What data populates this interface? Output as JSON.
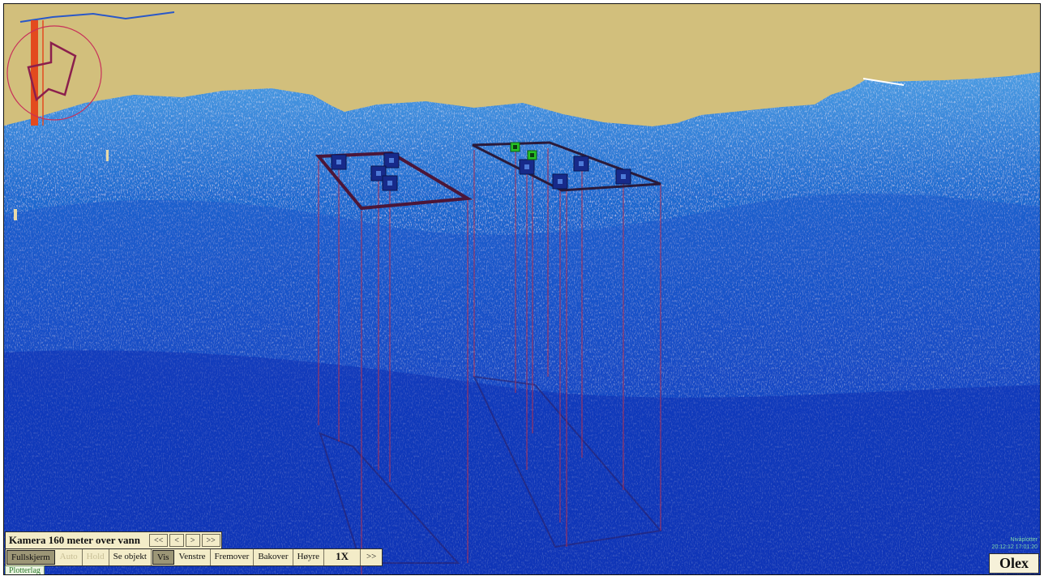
{
  "camera": {
    "status": "Kamera 160 meter over vann",
    "nav_buttons": [
      "<<",
      "<",
      ">",
      ">>"
    ]
  },
  "toolbar": {
    "fullscreen": "Fullskjerm",
    "auto": "Auto",
    "hold": "Hold",
    "show_object": "Se objekt",
    "show": "Vis",
    "left": "Venstre",
    "forward": "Fremover",
    "backward": "Bakover",
    "right": "Høyre",
    "speed": "1X",
    "next": ">>"
  },
  "plotter_tab": "Plotterlag",
  "status_lines": [
    "Nivåplotter",
    "20:12:12  17:01:20"
  ],
  "brand": "Olex",
  "colors": {
    "sky": "#d2bf7c",
    "seabed_deep": "#0b31b8",
    "seabed_shallow": "#3d92dd",
    "marker_blue": "#172a8a",
    "marker_green": "#27c227",
    "frame_outline": "#4b1638",
    "drop_line": "#b23050",
    "compass": "#c8305a"
  },
  "icons": {
    "compass": "compass-arrow-icon",
    "marker": "square-marker-icon",
    "marker_active": "square-marker-green-icon"
  }
}
